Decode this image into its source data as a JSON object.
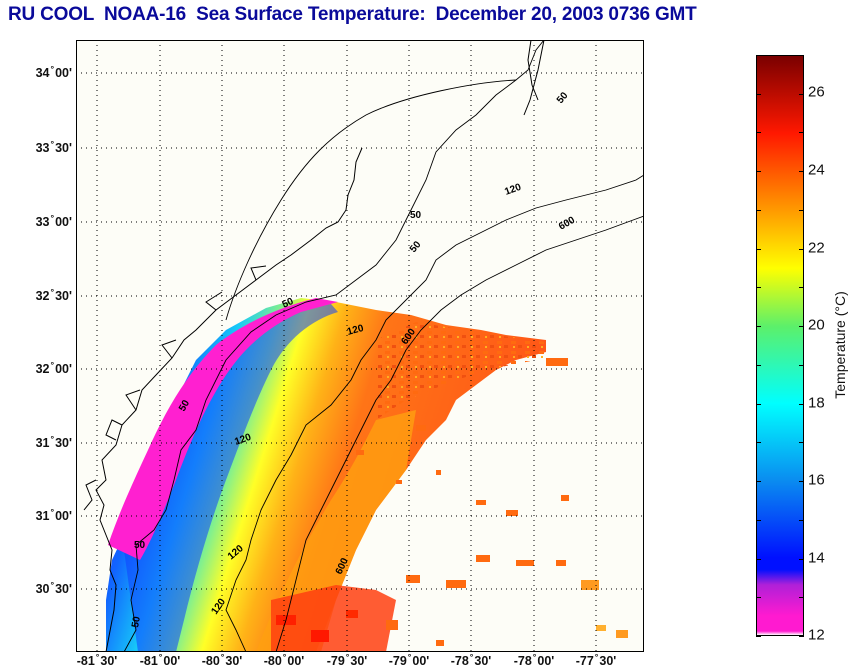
{
  "title": "RU COOL  NOAA-16  Sea Surface Temperature:  December 20, 2003 0736 GMT",
  "map": {
    "latitude_labels": [
      {
        "deg": "34",
        "min": "00'"
      },
      {
        "deg": "33",
        "min": "30'"
      },
      {
        "deg": "33",
        "min": "00'"
      },
      {
        "deg": "32",
        "min": "30'"
      },
      {
        "deg": "32",
        "min": "00'"
      },
      {
        "deg": "31",
        "min": "30'"
      },
      {
        "deg": "31",
        "min": "00'"
      },
      {
        "deg": "30",
        "min": "30'"
      }
    ],
    "longitude_labels": [
      {
        "deg": "-81",
        "min": "30'"
      },
      {
        "deg": "-81",
        "min": "00'"
      },
      {
        "deg": "-80",
        "min": "30'"
      },
      {
        "deg": "-80",
        "min": "00'"
      },
      {
        "deg": "-79",
        "min": "30'"
      },
      {
        "deg": "-79",
        "min": "00'"
      },
      {
        "deg": "-78",
        "min": "30'"
      },
      {
        "deg": "-78",
        "min": "00'"
      },
      {
        "deg": "-77",
        "min": "30'"
      }
    ],
    "isobath_labels": [
      "50",
      "50",
      "50",
      "50",
      "50",
      "50",
      "120",
      "120",
      "120",
      "120",
      "120",
      "600",
      "600",
      "600"
    ],
    "grid": "dotted",
    "background_color": "#fdfdf7"
  },
  "colorbar": {
    "title": "Temperature (°C)",
    "min": 12,
    "max": 27,
    "tick_labels": [
      "26",
      "24",
      "22",
      "20",
      "18",
      "16",
      "14",
      "12"
    ],
    "colors": {
      "c12": "#ff1ad0",
      "c13": "#b020d8",
      "c14": "#0010ff",
      "c16": "#0a8cf0",
      "c18": "#00ffff",
      "c20": "#5cf06a",
      "c21_5": "#ffff00",
      "c23": "#ff9a00",
      "c25": "#ff1800",
      "c27": "#7a0000"
    }
  }
}
